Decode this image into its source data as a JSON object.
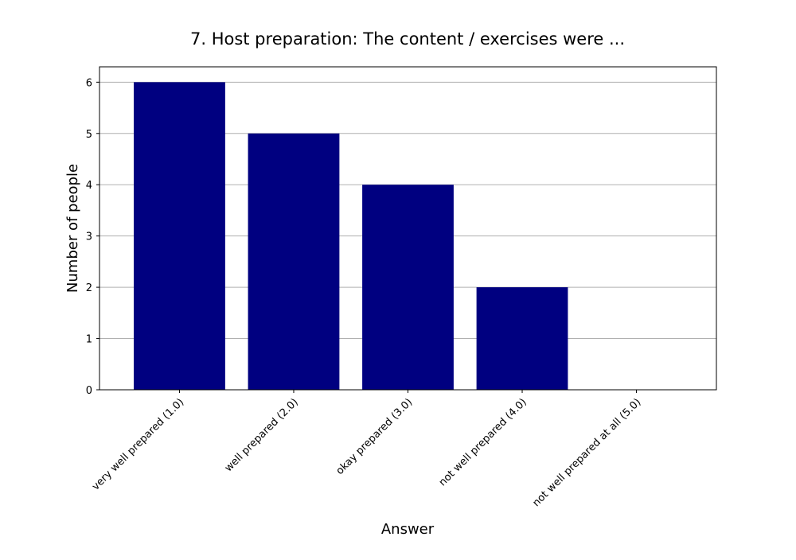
{
  "chart_data": {
    "type": "bar",
    "title": "7. Host preparation: The content / exercises were ...",
    "xlabel": "Answer",
    "ylabel": "Number of people",
    "categories": [
      "very well prepared (1.0)",
      "well prepared (2.0)",
      "okay prepared (3.0)",
      "not well prepared (4.0)",
      "not well prepared at all (5.0)"
    ],
    "values": [
      6,
      5,
      4,
      2,
      0
    ],
    "ylim": [
      0,
      6.3
    ],
    "yticks": [
      0,
      1,
      2,
      3,
      4,
      5,
      6
    ],
    "grid": "horizontal",
    "bar_color": "#000080",
    "legend": "none"
  }
}
